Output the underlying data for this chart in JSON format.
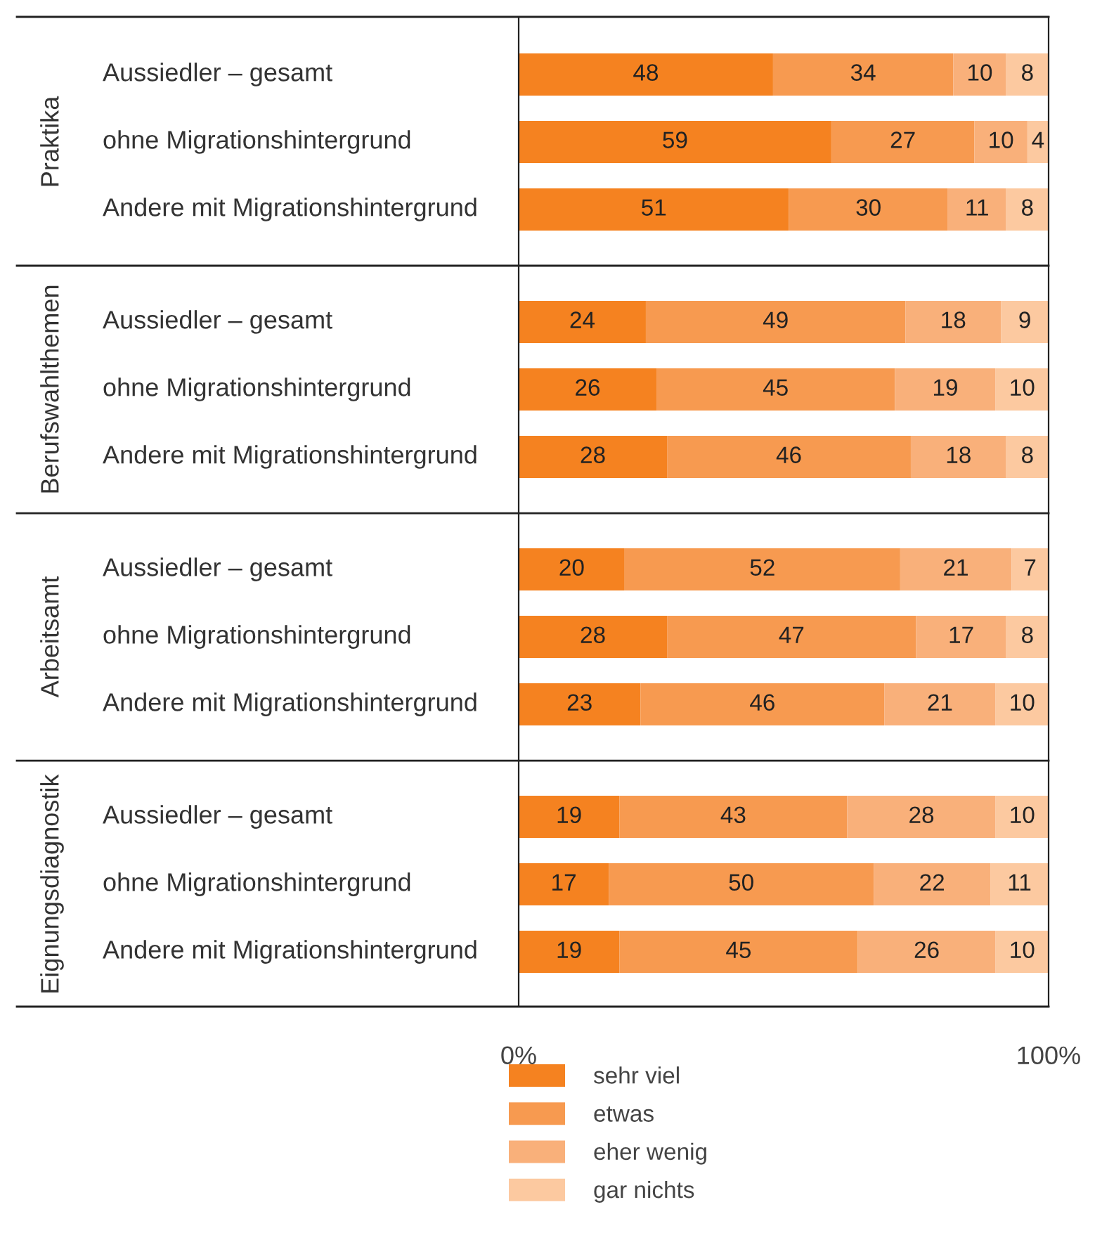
{
  "chart_data": {
    "type": "bar",
    "orientation": "horizontal",
    "stacked": true,
    "categories": [
      "Aussiedler – gesamt",
      "ohne Migrationshintergrund",
      "Andere mit Migrationshintergrund",
      "Aussiedler – gesamt",
      "ohne Migrationshintergrund",
      "Andere mit Migrationshintergrund",
      "Aussiedler – gesamt",
      "ohne Migrationshintergrund",
      "Andere mit Migrationshintergrund",
      "Aussiedler – gesamt",
      "ohne Migrationshintergrund",
      "Andere mit Migrationshintergrund"
    ],
    "annotations": [
      "Praktika",
      "Berufswahlthemen",
      "Arbeitsamt",
      "Eignungsdiagnostik"
    ],
    "series": [
      {
        "name": "sehr viel",
        "color": "#f58220",
        "values": [
          48,
          59,
          51,
          24,
          26,
          28,
          20,
          28,
          23,
          19,
          17,
          19
        ]
      },
      {
        "name": "etwas",
        "color": "#f79a50",
        "values": [
          34,
          27,
          30,
          49,
          45,
          46,
          52,
          47,
          46,
          43,
          50,
          45
        ]
      },
      {
        "name": "eher wenig",
        "color": "#f9b07a",
        "values": [
          10,
          10,
          11,
          18,
          19,
          18,
          21,
          17,
          21,
          28,
          22,
          26
        ]
      },
      {
        "name": "gar nichts",
        "color": "#fcc9a0",
        "values": [
          8,
          4,
          8,
          9,
          10,
          8,
          7,
          8,
          10,
          10,
          11,
          10
        ]
      }
    ],
    "xlim": [
      0,
      100
    ],
    "xticks": [
      {
        "value": 0,
        "label": "0%"
      },
      {
        "value": 100,
        "label": "100%"
      }
    ],
    "data_labels": true,
    "legend": "bottom",
    "grid": false
  }
}
